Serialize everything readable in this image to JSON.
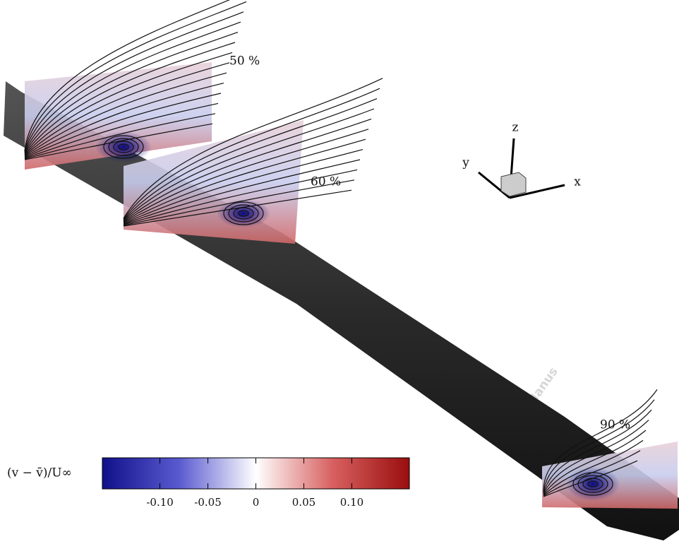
{
  "slices": [
    {
      "label": "50 %"
    },
    {
      "label": "60 %"
    },
    {
      "label": "90 %"
    }
  ],
  "axes_triad": {
    "z": "z",
    "y": "y",
    "x": "x"
  },
  "colorbar": {
    "label": "(v − v̄)/U∞",
    "range": [
      -0.16,
      0.16
    ],
    "ticks": [
      {
        "value": -0.1,
        "label": "-0.10"
      },
      -0.05,
      0,
      0.05,
      {
        "value": 0.1,
        "label": "0.10"
      }
    ]
  },
  "watermark": "ed Manus"
}
